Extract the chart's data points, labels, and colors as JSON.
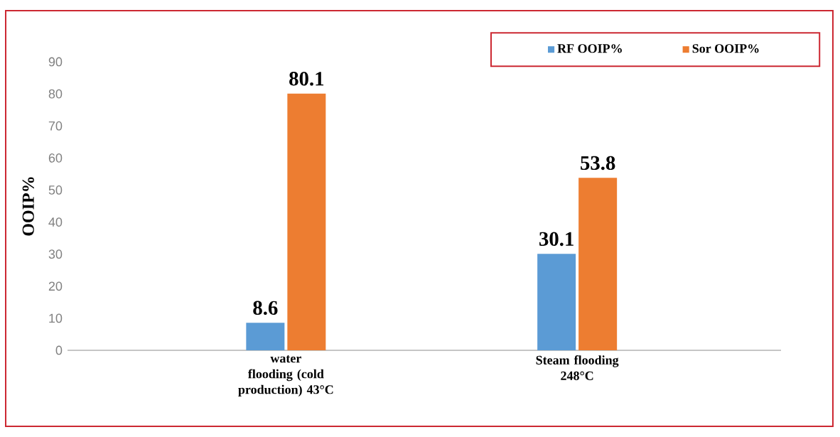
{
  "chart_data": {
    "type": "bar",
    "categories": [
      "water flooding (cold production) 43°C",
      "Steam flooding 248°C"
    ],
    "series": [
      {
        "name": "RF  OOIP%",
        "color": "#5b9bd5",
        "values": [
          8.6,
          30.1
        ]
      },
      {
        "name": "Sor OOIP%",
        "color": "#ed7d31",
        "values": [
          80.1,
          53.8
        ]
      }
    ],
    "ylabel": "OOIP%",
    "ylim": [
      0,
      90
    ],
    "yticks": [
      0,
      10,
      20,
      30,
      40,
      50,
      60,
      70,
      80,
      90
    ],
    "data_labels": true,
    "legend": "top right"
  }
}
